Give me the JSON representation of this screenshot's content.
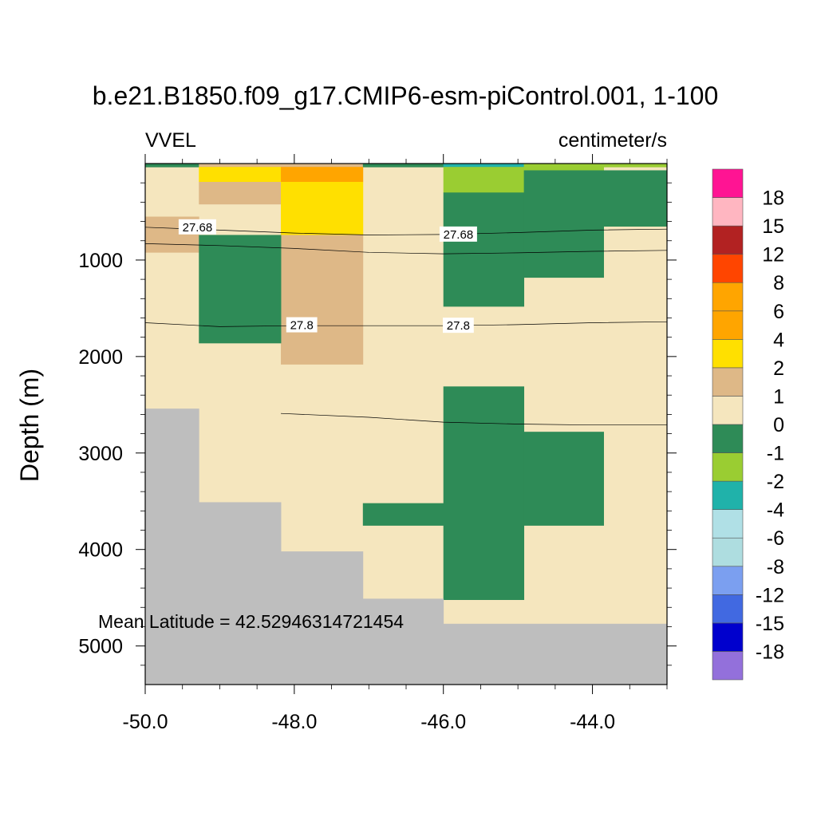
{
  "chart_data": {
    "type": "heatmap",
    "title": "b.e21.B1850.f09_g17.CMIP6-esm-piControl.001, 1-100",
    "left_label": "VVEL",
    "right_label": "centimeter/s",
    "xlabel": "",
    "ylabel": "Depth (m)",
    "annotation": "Mean Latitude = 42.52946314721454",
    "xlim": [
      -50.0,
      -43.0
    ],
    "ylim": [
      5400,
      0
    ],
    "x_ticks": [
      -50.0,
      -48.0,
      -46.0,
      -44.0
    ],
    "x_tick_labels": [
      "-50.0",
      "-48.0",
      "-46.0",
      "-44.0"
    ],
    "y_ticks": [
      1000,
      2000,
      3000,
      4000,
      5000
    ],
    "y_tick_labels": [
      "1000",
      "2000",
      "3000",
      "4000",
      "5000"
    ],
    "colors": {
      "land": "#bebebe",
      "background": "#f5e6be"
    },
    "colorbar": {
      "colors": [
        "#9370db",
        "#0000cd",
        "#4169e1",
        "#7b9ff0",
        "#aedde0",
        "#b0e0e6",
        "#20b2aa",
        "#9acd32",
        "#2e8b57",
        "#f5e6be",
        "#deb887",
        "#ffe000",
        "#ffa500",
        "#ffa500",
        "#ff4500",
        "#b22222",
        "#ffb6c1",
        "#ff1493"
      ],
      "labels": [
        "-18",
        "-15",
        "-12",
        "-8",
        "-6",
        "-4",
        "-2",
        "-1",
        "0",
        "1",
        "2",
        "4",
        "6",
        "8",
        "12",
        "15",
        "18"
      ]
    },
    "cells": [
      {
        "x0": -50.0,
        "x1": -43.0,
        "d0": 0,
        "d1": 5400,
        "color": "#f5e6be"
      },
      {
        "x0": -50.0,
        "x1": -49.28,
        "d0": 0,
        "d1": 35,
        "color": "#2e8b57"
      },
      {
        "x0": -49.28,
        "x1": -48.18,
        "d0": 0,
        "d1": 35,
        "color": "#deb887"
      },
      {
        "x0": -48.18,
        "x1": -47.08,
        "d0": 0,
        "d1": 35,
        "color": "#deb887"
      },
      {
        "x0": -47.08,
        "x1": -46.0,
        "d0": 0,
        "d1": 35,
        "color": "#2e8b57"
      },
      {
        "x0": -46.0,
        "x1": -44.92,
        "d0": 0,
        "d1": 35,
        "color": "#20b2aa"
      },
      {
        "x0": -44.92,
        "x1": -43.0,
        "d0": 0,
        "d1": 35,
        "color": "#9acd32"
      },
      {
        "x0": -49.28,
        "x1": -48.18,
        "d0": 35,
        "d1": 190,
        "color": "#ffe000"
      },
      {
        "x0": -49.28,
        "x1": -48.18,
        "d0": 190,
        "d1": 420,
        "color": "#deb887"
      },
      {
        "x0": -48.18,
        "x1": -47.08,
        "d0": 35,
        "d1": 190,
        "color": "#ffa500"
      },
      {
        "x0": -48.18,
        "x1": -47.08,
        "d0": 190,
        "d1": 740,
        "color": "#ffe000"
      },
      {
        "x0": -48.18,
        "x1": -47.08,
        "d0": 740,
        "d1": 2080,
        "color": "#deb887"
      },
      {
        "x0": -50.0,
        "x1": -49.28,
        "d0": 550,
        "d1": 920,
        "color": "#deb887"
      },
      {
        "x0": -49.28,
        "x1": -48.18,
        "d0": 740,
        "d1": 1860,
        "color": "#2e8b57"
      },
      {
        "x0": -46.0,
        "x1": -44.92,
        "d0": 35,
        "d1": 300,
        "color": "#9acd32"
      },
      {
        "x0": -44.92,
        "x1": -43.85,
        "d0": 35,
        "d1": 70,
        "color": "#9acd32"
      },
      {
        "x0": -46.0,
        "x1": -44.92,
        "d0": 300,
        "d1": 1480,
        "color": "#2e8b57"
      },
      {
        "x0": -44.92,
        "x1": -43.85,
        "d0": 70,
        "d1": 1180,
        "color": "#2e8b57"
      },
      {
        "x0": -43.85,
        "x1": -43.0,
        "d0": 70,
        "d1": 650,
        "color": "#2e8b57"
      },
      {
        "x0": -46.0,
        "x1": -44.92,
        "d0": 2310,
        "d1": 4520,
        "color": "#2e8b57"
      },
      {
        "x0": -44.92,
        "x1": -43.85,
        "d0": 2780,
        "d1": 3750,
        "color": "#2e8b57"
      },
      {
        "x0": -47.08,
        "x1": -46.0,
        "d0": 3520,
        "d1": 3750,
        "color": "#2e8b57"
      },
      {
        "x0": -50.0,
        "x1": -49.28,
        "d0": 2540,
        "d1": 5400,
        "color": "#bebebe"
      },
      {
        "x0": -49.28,
        "x1": -48.18,
        "d0": 3510,
        "d1": 5400,
        "color": "#bebebe"
      },
      {
        "x0": -48.18,
        "x1": -47.08,
        "d0": 4020,
        "d1": 5400,
        "color": "#bebebe"
      },
      {
        "x0": -47.08,
        "x1": -46.0,
        "d0": 4510,
        "d1": 5400,
        "color": "#bebebe"
      },
      {
        "x0": -46.0,
        "x1": -43.0,
        "d0": 4770,
        "d1": 5400,
        "color": "#bebebe"
      }
    ],
    "contours": [
      {
        "level": "27.68",
        "points": [
          [
            -50.0,
            660
          ],
          [
            -49.0,
            690
          ],
          [
            -48.0,
            720
          ],
          [
            -47.0,
            740
          ],
          [
            -46.0,
            735
          ],
          [
            -45.0,
            715
          ],
          [
            -44.0,
            690
          ],
          [
            -43.0,
            680
          ]
        ],
        "labels": [
          {
            "x": -49.3,
            "d": 660
          },
          {
            "x": -45.8,
            "d": 735
          }
        ]
      },
      {
        "level": "",
        "points": [
          [
            -50.0,
            830
          ],
          [
            -49.0,
            850
          ],
          [
            -48.0,
            880
          ],
          [
            -47.0,
            920
          ],
          [
            -46.0,
            935
          ],
          [
            -45.0,
            925
          ],
          [
            -44.0,
            910
          ],
          [
            -43.0,
            900
          ]
        ],
        "labels": []
      },
      {
        "level": "27.8",
        "points": [
          [
            -50.0,
            1650
          ],
          [
            -49.0,
            1690
          ],
          [
            -48.0,
            1680
          ],
          [
            -47.0,
            1680
          ],
          [
            -46.0,
            1680
          ],
          [
            -45.0,
            1670
          ],
          [
            -44.0,
            1650
          ],
          [
            -43.0,
            1640
          ]
        ],
        "labels": [
          {
            "x": -47.9,
            "d": 1675
          },
          {
            "x": -45.8,
            "d": 1680
          }
        ]
      },
      {
        "level": "",
        "points": [
          [
            -48.18,
            2590
          ],
          [
            -47.0,
            2630
          ],
          [
            -46.0,
            2680
          ],
          [
            -45.0,
            2700
          ],
          [
            -44.0,
            2710
          ],
          [
            -43.0,
            2710
          ]
        ],
        "labels": []
      }
    ]
  }
}
